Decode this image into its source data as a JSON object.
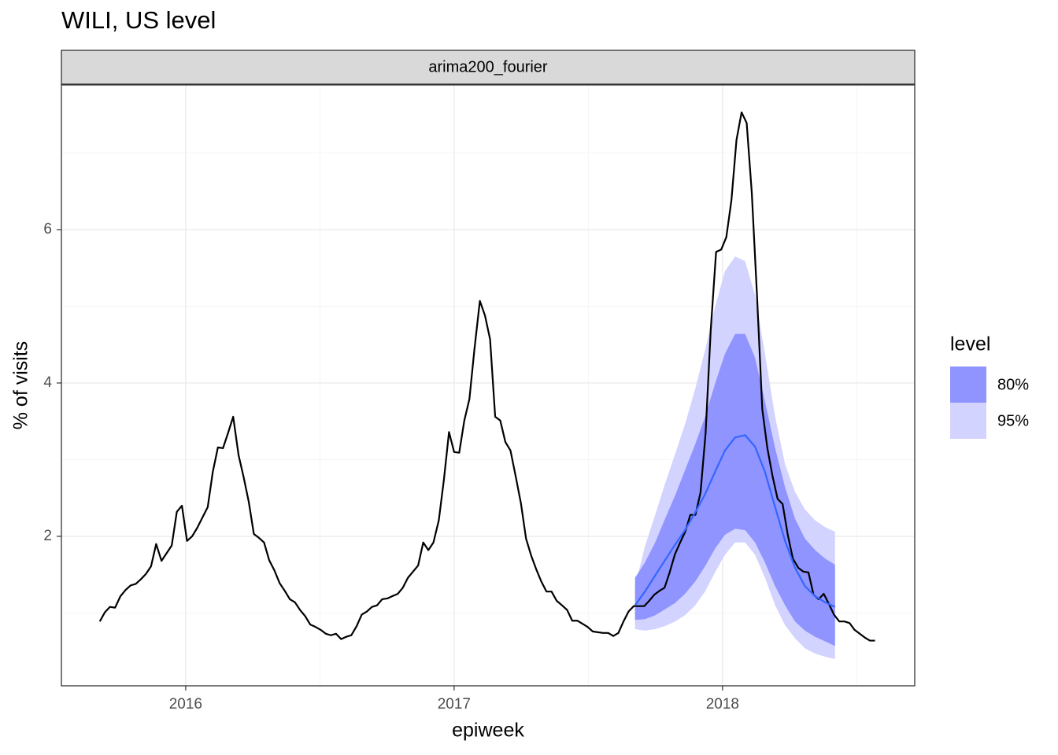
{
  "chart_data": {
    "type": "line",
    "title": "WILI, US level",
    "facet": "arima200_fourier",
    "x_label": "epiweek",
    "y_label": "% of visits",
    "xlim": [
      2015.537,
      2018.716
    ],
    "xticks": [
      2016,
      2017,
      2018
    ],
    "xminor": [
      2016.5,
      2017.5,
      2018.5
    ],
    "ylim": [
      0.051,
      7.887
    ],
    "yticks": [
      2,
      4,
      6
    ],
    "yminor": [
      1,
      3,
      5,
      7
    ],
    "grid": true,
    "legend_title": "level",
    "legend_position": "right",
    "series": [
      {
        "color": "#000000",
        "x": [
          2015.68,
          2015.699,
          2015.718,
          2015.737,
          2015.757,
          2015.776,
          2015.795,
          2015.814,
          2015.833,
          2015.852,
          2015.871,
          2015.89,
          2015.91,
          2015.929,
          2015.948,
          2015.967,
          2015.986,
          2016.005,
          2016.024,
          2016.043,
          2016.063,
          2016.082,
          2016.101,
          2016.12,
          2016.139,
          2016.158,
          2016.177,
          2016.197,
          2016.216,
          2016.235,
          2016.254,
          2016.273,
          2016.292,
          2016.311,
          2016.33,
          2016.35,
          2016.369,
          2016.388,
          2016.407,
          2016.426,
          2016.445,
          2016.464,
          2016.483,
          2016.503,
          2016.522,
          2016.541,
          2016.56,
          2016.579,
          2016.598,
          2016.617,
          2016.637,
          2016.656,
          2016.675,
          2016.694,
          2016.713,
          2016.732,
          2016.751,
          2016.77,
          2016.79,
          2016.809,
          2016.828,
          2016.847,
          2016.866,
          2016.885,
          2016.904,
          2016.923,
          2016.943,
          2016.962,
          2016.981,
          2017.0,
          2017.019,
          2017.038,
          2017.057,
          2017.076,
          2017.096,
          2017.115,
          2017.134,
          2017.153,
          2017.172,
          2017.191,
          2017.21,
          2017.229,
          2017.249,
          2017.268,
          2017.287,
          2017.306,
          2017.325,
          2017.344,
          2017.363,
          2017.382,
          2017.402,
          2017.421,
          2017.44,
          2017.459,
          2017.478,
          2017.497,
          2017.516,
          2017.535,
          2017.555,
          2017.574,
          2017.593,
          2017.612,
          2017.631,
          2017.65,
          2017.669,
          2017.689,
          2017.708,
          2017.727,
          2017.746,
          2017.765,
          2017.784,
          2017.803,
          2017.822,
          2017.842,
          2017.861,
          2017.88,
          2017.899,
          2017.918,
          2017.937,
          2017.956,
          2017.976,
          2017.995,
          2018.014,
          2018.033,
          2018.052,
          2018.071,
          2018.09,
          2018.109,
          2018.129,
          2018.148,
          2018.167,
          2018.186,
          2018.205,
          2018.224,
          2018.243,
          2018.262,
          2018.282,
          2018.301,
          2018.32,
          2018.339,
          2018.358,
          2018.377,
          2018.396,
          2018.415,
          2018.435,
          2018.454,
          2018.473,
          2018.492,
          2018.511,
          2018.53,
          2018.549,
          2018.568
        ],
        "values": [
          0.89,
          1.01,
          1.08,
          1.07,
          1.22,
          1.3,
          1.36,
          1.38,
          1.44,
          1.51,
          1.61,
          1.9,
          1.68,
          1.78,
          1.88,
          2.32,
          2.4,
          1.94,
          2.0,
          2.11,
          2.25,
          2.38,
          2.84,
          3.16,
          3.15,
          3.35,
          3.56,
          3.06,
          2.77,
          2.45,
          2.03,
          1.98,
          1.92,
          1.69,
          1.56,
          1.39,
          1.29,
          1.18,
          1.14,
          1.04,
          0.96,
          0.85,
          0.82,
          0.78,
          0.73,
          0.71,
          0.73,
          0.66,
          0.69,
          0.71,
          0.83,
          0.98,
          1.02,
          1.08,
          1.1,
          1.18,
          1.19,
          1.22,
          1.25,
          1.33,
          1.46,
          1.54,
          1.62,
          1.92,
          1.82,
          1.92,
          2.21,
          2.74,
          3.36,
          3.1,
          3.09,
          3.51,
          3.79,
          4.45,
          5.07,
          4.88,
          4.57,
          3.56,
          3.51,
          3.23,
          3.12,
          2.79,
          2.43,
          1.97,
          1.75,
          1.57,
          1.41,
          1.28,
          1.28,
          1.16,
          1.1,
          1.04,
          0.9,
          0.9,
          0.86,
          0.82,
          0.76,
          0.75,
          0.74,
          0.74,
          0.7,
          0.74,
          0.89,
          1.02,
          1.09,
          1.09,
          1.09,
          1.16,
          1.24,
          1.29,
          1.33,
          1.53,
          1.76,
          1.92,
          2.06,
          2.28,
          2.28,
          2.57,
          3.35,
          4.69,
          5.71,
          5.74,
          5.9,
          6.38,
          7.17,
          7.53,
          7.39,
          6.48,
          5.1,
          3.66,
          3.15,
          2.79,
          2.49,
          2.42,
          2.02,
          1.71,
          1.59,
          1.54,
          1.53,
          1.24,
          1.18,
          1.25,
          1.12,
          0.98,
          0.89,
          0.89,
          0.87,
          0.78,
          0.73,
          0.68,
          0.64,
          0.64
        ]
      },
      {
        "color": "#3366ff",
        "x": [
          2017.674,
          2017.711,
          2017.749,
          2017.786,
          2017.823,
          2017.86,
          2017.898,
          2017.935,
          2017.972,
          2018.009,
          2018.047,
          2018.084,
          2018.121,
          2018.158,
          2018.196,
          2018.233,
          2018.27,
          2018.307,
          2018.345,
          2018.382,
          2018.419
        ],
        "values": [
          1.1,
          1.28,
          1.49,
          1.69,
          1.89,
          2.08,
          2.31,
          2.55,
          2.84,
          3.12,
          3.29,
          3.32,
          3.17,
          2.84,
          2.38,
          1.94,
          1.59,
          1.35,
          1.22,
          1.14,
          1.08
        ]
      }
    ],
    "bands": [
      {
        "name": "95%",
        "color": "#d3d3ff",
        "x": [
          2017.674,
          2017.711,
          2017.749,
          2017.786,
          2017.823,
          2017.86,
          2017.898,
          2017.935,
          2017.972,
          2018.009,
          2018.047,
          2018.084,
          2018.121,
          2018.158,
          2018.196,
          2018.233,
          2018.27,
          2018.307,
          2018.345,
          2018.382,
          2018.419
        ],
        "lower": [
          0.79,
          0.77,
          0.79,
          0.83,
          0.89,
          0.97,
          1.1,
          1.28,
          1.53,
          1.76,
          1.92,
          1.92,
          1.76,
          1.46,
          1.1,
          0.84,
          0.67,
          0.54,
          0.47,
          0.43,
          0.4
        ],
        "upper": [
          1.35,
          1.87,
          2.28,
          2.69,
          3.07,
          3.46,
          3.92,
          4.43,
          4.99,
          5.46,
          5.65,
          5.59,
          5.15,
          4.38,
          3.56,
          2.94,
          2.58,
          2.35,
          2.21,
          2.12,
          2.06
        ]
      },
      {
        "name": "80%",
        "color": "#8f94ff",
        "x": [
          2017.674,
          2017.711,
          2017.749,
          2017.786,
          2017.823,
          2017.86,
          2017.898,
          2017.935,
          2017.972,
          2018.009,
          2018.047,
          2018.084,
          2018.121,
          2018.158,
          2018.196,
          2018.233,
          2018.27,
          2018.307,
          2018.345,
          2018.382,
          2018.419
        ],
        "lower": [
          0.91,
          0.92,
          0.97,
          1.05,
          1.13,
          1.25,
          1.41,
          1.61,
          1.84,
          2.02,
          2.1,
          2.08,
          1.92,
          1.66,
          1.35,
          1.1,
          0.89,
          0.77,
          0.69,
          0.63,
          0.57
        ],
        "upper": [
          1.46,
          1.66,
          1.92,
          2.23,
          2.53,
          2.86,
          3.2,
          3.56,
          3.99,
          4.38,
          4.64,
          4.64,
          4.33,
          3.76,
          3.15,
          2.64,
          2.23,
          1.97,
          1.82,
          1.71,
          1.63
        ]
      }
    ]
  }
}
